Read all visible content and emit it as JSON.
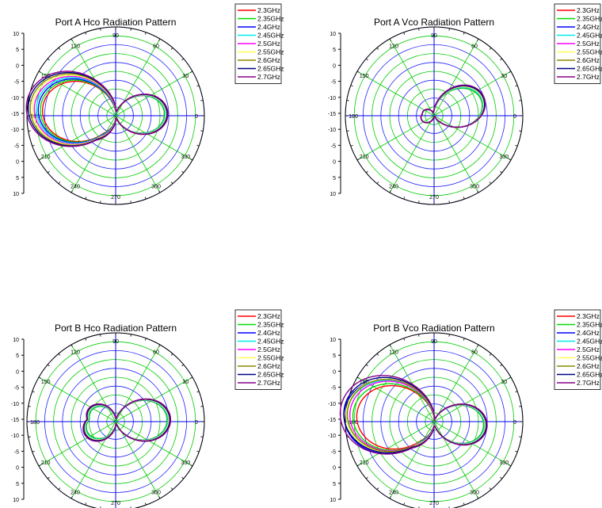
{
  "chart_data": [
    {
      "type": "polar-line",
      "title": "Port A Hco Radiation Pattern",
      "radial_tick_labels": [
        "10",
        "5",
        "0",
        "-5",
        "-10",
        "-15",
        "-10",
        "-5",
        "0",
        "5",
        "10"
      ],
      "angle_ticks": [
        0,
        30,
        60,
        90,
        120,
        150,
        180,
        210,
        240,
        270,
        300,
        330
      ],
      "legend_position": "top-right",
      "series": [
        {
          "name": "2.3GHz",
          "color": "#ff0000",
          "main": [
            0.05,
            0.55,
            2.0
          ],
          "back": [
            0.25,
            0.4,
            1.8
          ],
          "side": [
            0.22,
            0.25,
            1.8
          ]
        },
        {
          "name": "2.35GHz",
          "color": "#00dd00",
          "main": [
            0.05,
            0.55,
            2.0
          ],
          "back": [
            0.26,
            0.41,
            1.8
          ],
          "side": [
            0.23,
            0.26,
            1.8
          ]
        },
        {
          "name": "2.4GHz",
          "color": "#0000ff",
          "main": [
            0.05,
            0.56,
            2.0
          ],
          "back": [
            0.27,
            0.42,
            1.8
          ],
          "side": [
            0.24,
            0.27,
            1.8
          ]
        },
        {
          "name": "2.45GHz",
          "color": "#00eeee",
          "main": [
            0.05,
            0.56,
            2.0
          ],
          "back": [
            0.28,
            0.43,
            1.8
          ],
          "side": [
            0.26,
            0.28,
            1.8
          ]
        },
        {
          "name": "2.5GHz",
          "color": "#ff00ff",
          "main": [
            0.05,
            0.57,
            2.0
          ],
          "back": [
            0.29,
            0.44,
            1.8
          ],
          "side": [
            0.27,
            0.29,
            1.8
          ]
        },
        {
          "name": "2.55GHz",
          "color": "#ffff55",
          "main": [
            0.05,
            0.57,
            2.0
          ],
          "back": [
            0.3,
            0.45,
            1.8
          ],
          "side": [
            0.28,
            0.3,
            1.8
          ]
        },
        {
          "name": "2.6GHz",
          "color": "#888800",
          "main": [
            0.05,
            0.58,
            2.0
          ],
          "back": [
            0.31,
            0.46,
            1.8
          ],
          "side": [
            0.29,
            0.31,
            1.8
          ]
        },
        {
          "name": "2.65GHz",
          "color": "#000088",
          "main": [
            0.05,
            0.58,
            2.0
          ],
          "back": [
            0.32,
            0.47,
            1.8
          ],
          "side": [
            0.3,
            0.32,
            1.8
          ]
        },
        {
          "name": "2.7GHz",
          "color": "#880088",
          "main": [
            0.05,
            0.59,
            2.0
          ],
          "back": [
            0.33,
            0.48,
            1.8
          ],
          "side": [
            0.31,
            0.33,
            1.8
          ]
        }
      ]
    },
    {
      "type": "polar-line",
      "title": "Port A Vco Radiation Pattern",
      "radial_tick_labels": [
        "10",
        "5",
        "0",
        "-5",
        "-10",
        "-15",
        "-10",
        "-5",
        "0",
        "5",
        "10"
      ],
      "angle_ticks": [
        0,
        30,
        60,
        90,
        120,
        150,
        180,
        210,
        240,
        270,
        300,
        330
      ],
      "legend_position": "top-right",
      "series": [
        {
          "name": "2.3GHz",
          "color": "#ff0000",
          "main": [
            0.3,
            0.56,
            2.0
          ],
          "back": [
            0.2,
            0.15,
            1.8
          ],
          "side": [
            0,
            0,
            1.8
          ]
        },
        {
          "name": "2.35GHz",
          "color": "#00dd00",
          "main": [
            0.3,
            0.56,
            2.0
          ],
          "back": [
            0.2,
            0.15,
            1.8
          ],
          "side": [
            0,
            0,
            1.8
          ]
        },
        {
          "name": "2.4GHz",
          "color": "#0000ff",
          "main": [
            0.31,
            0.57,
            2.0
          ],
          "back": [
            0.21,
            0.15,
            1.8
          ],
          "side": [
            0,
            0,
            1.8
          ]
        },
        {
          "name": "2.45GHz",
          "color": "#00eeee",
          "main": [
            0.31,
            0.57,
            2.0
          ],
          "back": [
            0.21,
            0.15,
            1.8
          ],
          "side": [
            0,
            0,
            1.8
          ]
        },
        {
          "name": "2.5GHz",
          "color": "#ff00ff",
          "main": [
            0.32,
            0.58,
            2.0
          ],
          "back": [
            0.22,
            0.15,
            1.8
          ],
          "side": [
            0,
            0,
            1.8
          ]
        },
        {
          "name": "2.55GHz",
          "color": "#ffff55",
          "main": [
            0.32,
            0.58,
            2.0
          ],
          "back": [
            0.22,
            0.15,
            1.8
          ],
          "side": [
            0,
            0,
            1.8
          ]
        },
        {
          "name": "2.6GHz",
          "color": "#888800",
          "main": [
            0.33,
            0.59,
            2.0
          ],
          "back": [
            0.23,
            0.15,
            1.8
          ],
          "side": [
            0,
            0,
            1.8
          ]
        },
        {
          "name": "2.65GHz",
          "color": "#000088",
          "main": [
            0.33,
            0.59,
            2.0
          ],
          "back": [
            0.23,
            0.15,
            1.8
          ],
          "side": [
            0,
            0,
            1.8
          ]
        },
        {
          "name": "2.7GHz",
          "color": "#880088",
          "main": [
            0.34,
            0.6,
            2.0
          ],
          "back": [
            0.24,
            0.15,
            1.8
          ],
          "side": [
            0,
            0,
            1.8
          ]
        }
      ]
    },
    {
      "type": "polar-line",
      "title": "Port B Hco Radiation Pattern",
      "radial_tick_labels": [
        "10",
        "5",
        "0",
        "-5",
        "-10",
        "-15",
        "-10",
        "-5",
        "0",
        "5",
        "10"
      ],
      "angle_ticks": [
        0,
        30,
        60,
        90,
        120,
        150,
        180,
        210,
        240,
        270,
        300,
        330
      ],
      "legend_position": "top-right",
      "series": [
        {
          "name": "2.3GHz",
          "color": "#ff0000",
          "main": [
            0.05,
            0.58,
            2.0
          ],
          "back": [
            0.29,
            0.34,
            1.8
          ],
          "side": [
            0,
            0,
            1.8
          ]
        },
        {
          "name": "2.35GHz",
          "color": "#00dd00",
          "main": [
            0.05,
            0.58,
            2.0
          ],
          "back": [
            0.29,
            0.34,
            1.8
          ],
          "side": [
            0,
            0,
            1.8
          ]
        },
        {
          "name": "2.4GHz",
          "color": "#0000ff",
          "main": [
            0.05,
            0.59,
            2.0
          ],
          "back": [
            0.3,
            0.35,
            1.8
          ],
          "side": [
            0,
            0,
            1.8
          ]
        },
        {
          "name": "2.45GHz",
          "color": "#00eeee",
          "main": [
            0.05,
            0.59,
            2.0
          ],
          "back": [
            0.3,
            0.35,
            1.8
          ],
          "side": [
            0,
            0,
            1.8
          ]
        },
        {
          "name": "2.5GHz",
          "color": "#ff00ff",
          "main": [
            0.05,
            0.6,
            2.0
          ],
          "back": [
            0.31,
            0.36,
            1.8
          ],
          "side": [
            0,
            0,
            1.8
          ]
        },
        {
          "name": "2.55GHz",
          "color": "#ffff55",
          "main": [
            0.05,
            0.6,
            2.0
          ],
          "back": [
            0.31,
            0.36,
            1.8
          ],
          "side": [
            0,
            0,
            1.8
          ]
        },
        {
          "name": "2.6GHz",
          "color": "#888800",
          "main": [
            0.05,
            0.61,
            2.0
          ],
          "back": [
            0.32,
            0.37,
            1.8
          ],
          "side": [
            0,
            0,
            1.8
          ]
        },
        {
          "name": "2.65GHz",
          "color": "#000088",
          "main": [
            0.05,
            0.61,
            2.0
          ],
          "back": [
            0.32,
            0.37,
            1.8
          ],
          "side": [
            0,
            0,
            1.8
          ]
        },
        {
          "name": "2.7GHz",
          "color": "#880088",
          "main": [
            0.05,
            0.62,
            2.0
          ],
          "back": [
            0.33,
            0.38,
            1.8
          ],
          "side": [
            0,
            0,
            1.8
          ]
        }
      ]
    },
    {
      "type": "polar-line",
      "title": "Port B Vco Radiation Pattern",
      "radial_tick_labels": [
        "10",
        "5",
        "0",
        "-5",
        "-10",
        "-15",
        "-10",
        "-5",
        "0",
        "5",
        "10"
      ],
      "angle_ticks": [
        0,
        30,
        60,
        90,
        120,
        150,
        180,
        210,
        240,
        270,
        300,
        330
      ],
      "legend_position": "top-right",
      "series": [
        {
          "name": "2.3GHz",
          "color": "#ff0000",
          "main": [
            -0.1,
            0.56,
            2.0
          ],
          "back": [
            0.22,
            0.45,
            1.8
          ],
          "side": [
            0.22,
            0.25,
            1.8
          ]
        },
        {
          "name": "2.35GHz",
          "color": "#00dd00",
          "main": [
            -0.1,
            0.56,
            2.0
          ],
          "back": [
            0.23,
            0.46,
            1.8
          ],
          "side": [
            0.23,
            0.27,
            1.8
          ]
        },
        {
          "name": "2.4GHz",
          "color": "#0000ff",
          "main": [
            -0.1,
            0.57,
            2.0
          ],
          "back": [
            0.24,
            0.47,
            1.8
          ],
          "side": [
            0.24,
            0.32,
            1.8
          ]
        },
        {
          "name": "2.45GHz",
          "color": "#00eeee",
          "main": [
            -0.1,
            0.57,
            2.0
          ],
          "back": [
            0.25,
            0.48,
            1.8
          ],
          "side": [
            0.25,
            0.3,
            1.8
          ]
        },
        {
          "name": "2.5GHz",
          "color": "#ff00ff",
          "main": [
            -0.1,
            0.58,
            2.0
          ],
          "back": [
            0.26,
            0.49,
            1.8
          ],
          "side": [
            0.26,
            0.28,
            1.8
          ]
        },
        {
          "name": "2.55GHz",
          "color": "#ffff55",
          "main": [
            -0.1,
            0.58,
            2.0
          ],
          "back": [
            0.27,
            0.5,
            1.8
          ],
          "side": [
            0.27,
            0.3,
            1.8
          ]
        },
        {
          "name": "2.6GHz",
          "color": "#888800",
          "main": [
            -0.1,
            0.59,
            2.0
          ],
          "back": [
            0.28,
            0.51,
            1.8
          ],
          "side": [
            0.28,
            0.29,
            1.8
          ]
        },
        {
          "name": "2.65GHz",
          "color": "#000088",
          "main": [
            -0.1,
            0.59,
            2.0
          ],
          "back": [
            0.29,
            0.52,
            1.8
          ],
          "side": [
            0.29,
            0.31,
            1.8
          ]
        },
        {
          "name": "2.7GHz",
          "color": "#880088",
          "main": [
            -0.1,
            0.6,
            2.0
          ],
          "back": [
            0.3,
            0.53,
            1.8
          ],
          "side": [
            0.3,
            0.33,
            1.8
          ]
        }
      ]
    }
  ]
}
